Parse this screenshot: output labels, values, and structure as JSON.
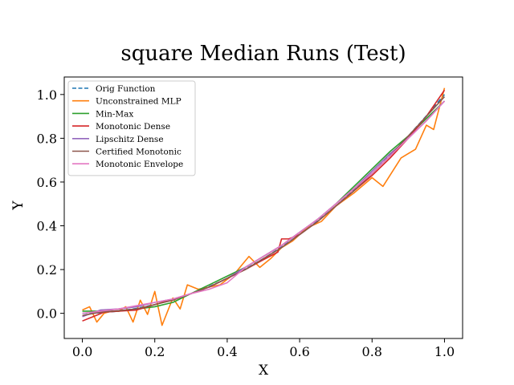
{
  "chart_data": {
    "type": "line",
    "title": "square Median Runs (Test)",
    "xlabel": "X",
    "ylabel": "Y",
    "xlim": [
      -0.05,
      1.05
    ],
    "ylim": [
      -0.115,
      1.08
    ],
    "xticks": [
      0.0,
      0.2,
      0.4,
      0.6,
      0.8,
      1.0
    ],
    "xtick_labels": [
      "0.0",
      "0.2",
      "0.4",
      "0.6",
      "0.8",
      "1.0"
    ],
    "yticks": [
      0.0,
      0.2,
      0.4,
      0.6,
      0.8,
      1.0
    ],
    "ytick_labels": [
      "0.0",
      "0.2",
      "0.4",
      "0.6",
      "0.8",
      "1.0"
    ],
    "grid": false,
    "legend_position": "top-left",
    "series": [
      {
        "name": "Orig Function",
        "color": "#1f77b4",
        "dashed": true,
        "x": [
          0.0,
          0.05,
          0.1,
          0.15,
          0.2,
          0.25,
          0.3,
          0.35,
          0.4,
          0.45,
          0.5,
          0.55,
          0.6,
          0.65,
          0.7,
          0.75,
          0.8,
          0.85,
          0.9,
          0.95,
          1.0
        ],
        "y": [
          0.0,
          0.0025,
          0.01,
          0.0225,
          0.04,
          0.0625,
          0.09,
          0.1225,
          0.16,
          0.2025,
          0.25,
          0.3025,
          0.36,
          0.4225,
          0.49,
          0.5625,
          0.64,
          0.7225,
          0.81,
          0.9025,
          1.0
        ]
      },
      {
        "name": "Unconstrained MLP",
        "color": "#ff7f0e",
        "dashed": false,
        "x": [
          0.0,
          0.02,
          0.04,
          0.06,
          0.08,
          0.1,
          0.12,
          0.14,
          0.16,
          0.18,
          0.2,
          0.22,
          0.25,
          0.27,
          0.29,
          0.32,
          0.35,
          0.38,
          0.42,
          0.46,
          0.49,
          0.52,
          0.55,
          0.58,
          0.62,
          0.66,
          0.7,
          0.75,
          0.8,
          0.83,
          0.88,
          0.92,
          0.95,
          0.97,
          1.0
        ],
        "y": [
          0.015,
          0.03,
          -0.04,
          0.0,
          0.01,
          0.01,
          0.03,
          -0.04,
          0.06,
          -0.005,
          0.1,
          -0.055,
          0.07,
          0.02,
          0.13,
          0.11,
          0.12,
          0.13,
          0.18,
          0.26,
          0.21,
          0.25,
          0.3,
          0.33,
          0.39,
          0.42,
          0.49,
          0.55,
          0.62,
          0.58,
          0.71,
          0.75,
          0.86,
          0.84,
          1.03
        ]
      },
      {
        "name": "Min-Max",
        "color": "#2ca02c",
        "dashed": false,
        "x": [
          0.0,
          0.05,
          0.1,
          0.15,
          0.2,
          0.25,
          0.3,
          0.35,
          0.4,
          0.45,
          0.5,
          0.55,
          0.6,
          0.65,
          0.7,
          0.75,
          0.8,
          0.85,
          0.9,
          0.95,
          1.0
        ],
        "y": [
          0.01,
          0.01,
          0.01,
          0.02,
          0.03,
          0.05,
          0.09,
          0.13,
          0.17,
          0.21,
          0.26,
          0.31,
          0.37,
          0.43,
          0.5,
          0.58,
          0.66,
          0.74,
          0.81,
          0.89,
          0.97
        ]
      },
      {
        "name": "Monotonic Dense",
        "color": "#d62728",
        "dashed": false,
        "x": [
          0.0,
          0.03,
          0.06,
          0.1,
          0.15,
          0.2,
          0.25,
          0.3,
          0.35,
          0.4,
          0.45,
          0.5,
          0.54,
          0.55,
          0.57,
          0.6,
          0.65,
          0.7,
          0.75,
          0.8,
          0.85,
          0.9,
          0.95,
          1.0
        ],
        "y": [
          -0.035,
          -0.015,
          0.005,
          0.01,
          0.015,
          0.04,
          0.065,
          0.09,
          0.12,
          0.16,
          0.2,
          0.245,
          0.28,
          0.34,
          0.34,
          0.36,
          0.42,
          0.49,
          0.56,
          0.63,
          0.71,
          0.8,
          0.9,
          1.02
        ]
      },
      {
        "name": "Lipschitz Dense",
        "color": "#9467bd",
        "dashed": false,
        "x": [
          0.0,
          0.05,
          0.1,
          0.15,
          0.2,
          0.25,
          0.3,
          0.35,
          0.4,
          0.45,
          0.5,
          0.55,
          0.6,
          0.65,
          0.7,
          0.75,
          0.8,
          0.85,
          0.9,
          0.95,
          1.0
        ],
        "y": [
          -0.015,
          0.015,
          0.02,
          0.03,
          0.05,
          0.065,
          0.09,
          0.12,
          0.16,
          0.21,
          0.26,
          0.31,
          0.37,
          0.43,
          0.5,
          0.57,
          0.65,
          0.73,
          0.8,
          0.88,
          0.97
        ]
      },
      {
        "name": "Certified Monotonic",
        "color": "#8c564b",
        "dashed": false,
        "x": [
          0.0,
          0.05,
          0.1,
          0.15,
          0.2,
          0.25,
          0.3,
          0.35,
          0.4,
          0.45,
          0.5,
          0.55,
          0.6,
          0.65,
          0.7,
          0.75,
          0.8,
          0.85,
          0.9,
          0.95,
          1.0
        ],
        "y": [
          -0.01,
          0.005,
          0.012,
          0.02,
          0.04,
          0.06,
          0.09,
          0.12,
          0.16,
          0.2,
          0.25,
          0.3,
          0.36,
          0.42,
          0.49,
          0.56,
          0.64,
          0.72,
          0.81,
          0.9,
          0.99
        ]
      },
      {
        "name": "Monotonic Envelope",
        "color": "#e377c2",
        "dashed": false,
        "x": [
          0.0,
          0.05,
          0.1,
          0.15,
          0.2,
          0.25,
          0.3,
          0.35,
          0.4,
          0.45,
          0.5,
          0.55,
          0.6,
          0.65,
          0.7,
          0.75,
          0.8,
          0.85,
          0.9,
          0.95,
          1.0
        ],
        "y": [
          0.0,
          0.01,
          0.02,
          0.035,
          0.05,
          0.065,
          0.09,
          0.11,
          0.14,
          0.21,
          0.26,
          0.31,
          0.37,
          0.43,
          0.5,
          0.57,
          0.64,
          0.72,
          0.8,
          0.88,
          0.97
        ]
      }
    ]
  }
}
